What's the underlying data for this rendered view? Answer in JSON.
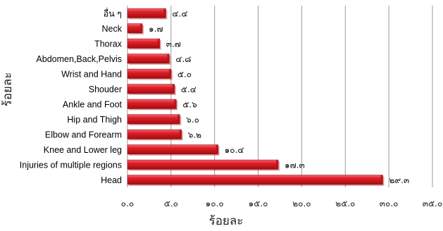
{
  "chart_data": {
    "type": "bar",
    "orientation": "horizontal",
    "categories": [
      "อื่น ๆ",
      "Neck",
      "Thorax",
      "Abdomen,Back,Pelvis",
      "Wrist and Hand",
      "Shouder",
      "Ankle and Foot",
      "Hip and Thigh",
      "Elbow and Forearm",
      "Knee and Lower leg",
      "Injuries of multiple regions",
      "Head"
    ],
    "values": [
      4.4,
      1.7,
      3.7,
      4.8,
      5.0,
      5.4,
      5.6,
      6.0,
      6.2,
      10.4,
      17.3,
      29.3
    ],
    "data_labels": [
      "๔.๔",
      "๑.๗",
      "๓.๗",
      "๔.๘",
      "๕.๐",
      "๕.๔",
      "๕.๖",
      "๖.๐",
      "๖.๒",
      "๑๐.๔",
      "๑๗.๓",
      "๒๙.๓"
    ],
    "tick_values": [
      0,
      5,
      10,
      15,
      20,
      25,
      30,
      35
    ],
    "tick_labels": [
      "๐.๐",
      "๕.๐",
      "๑๐.๐",
      "๑๕.๐",
      "๒๐.๐",
      "๒๕.๐",
      "๓๐.๐",
      "๓๕.๐"
    ],
    "xlim": [
      0,
      35
    ],
    "xlabel": "ร้อยละ",
    "ylabel": "ร้อยละ",
    "title": "",
    "grid": true,
    "bar_color": "#d7191c",
    "bar_highlight": "#f0606a",
    "bar_shadow": "#8e0b0e"
  }
}
